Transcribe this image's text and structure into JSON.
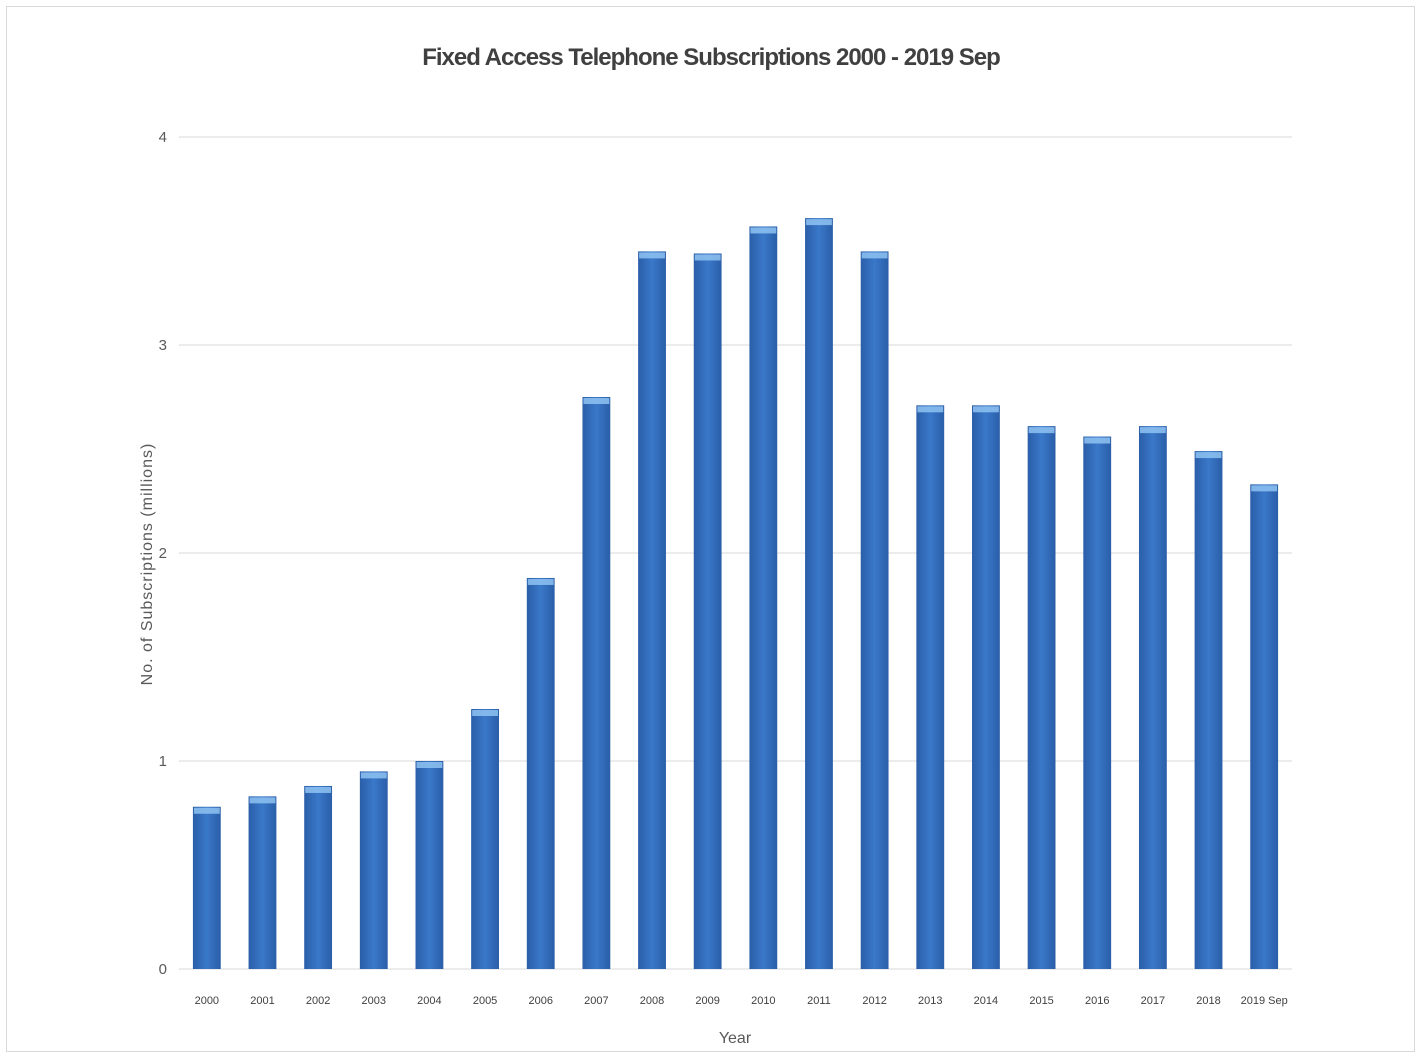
{
  "chart_data": {
    "type": "bar",
    "title": "Fixed Access Telephone Subscriptions 2000 - 2019 Sep",
    "xlabel": "Year",
    "ylabel": "No. of Subscriptions (millions)",
    "categories": [
      "2000",
      "2001",
      "2002",
      "2003",
      "2004",
      "2005",
      "2006",
      "2007",
      "2008",
      "2009",
      "2010",
      "2011",
      "2012",
      "2013",
      "2014",
      "2015",
      "2016",
      "2017",
      "2018",
      "2019 Sep"
    ],
    "values": [
      0.78,
      0.83,
      0.88,
      0.95,
      1.0,
      1.25,
      1.88,
      2.75,
      3.45,
      3.44,
      3.57,
      3.61,
      3.45,
      2.71,
      2.71,
      2.61,
      2.56,
      2.61,
      2.49,
      2.33
    ],
    "ylim": [
      0,
      4
    ],
    "yticks": [
      "0",
      "1",
      "2",
      "3",
      "4"
    ],
    "grid": true,
    "legend": "none",
    "colors": {
      "bar": "#3a78c9",
      "bar_dark": "#2a5ea8",
      "bar_cap": "#8fc3f2"
    }
  }
}
